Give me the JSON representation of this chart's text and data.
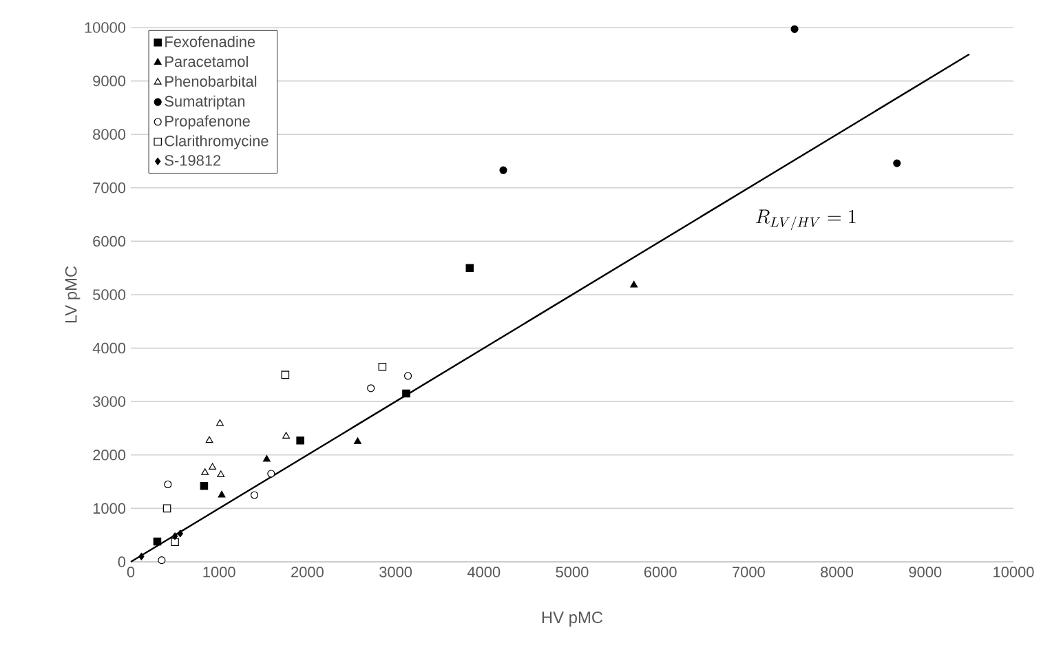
{
  "chart_data": {
    "type": "scatter",
    "xlabel": "HV pMC",
    "ylabel": "LV pMC",
    "xlim": [
      0,
      10000
    ],
    "ylim": [
      0,
      10000
    ],
    "xticks": [
      0,
      1000,
      2000,
      3000,
      4000,
      5000,
      6000,
      7000,
      8000,
      9000,
      10000
    ],
    "yticks": [
      0,
      1000,
      2000,
      3000,
      4000,
      5000,
      6000,
      7000,
      8000,
      9000,
      10000
    ],
    "grid": "y",
    "legend": "top left",
    "series": [
      {
        "name": "Fexofenadine",
        "color": "#000000",
        "marker": "square",
        "x": [
          300,
          830,
          1920,
          3120,
          3840
        ],
        "values": [
          380,
          1420,
          2270,
          3150,
          5500
        ]
      },
      {
        "name": "Paracetamol",
        "color": "#000000",
        "marker": "triangle",
        "x": [
          1030,
          1540,
          2570,
          5700
        ],
        "values": [
          1250,
          1920,
          2250,
          5180
        ]
      },
      {
        "name": "Phenobarbital",
        "color": "#ffffff",
        "marker": "triangle",
        "x": [
          840,
          925,
          1020,
          890,
          1010,
          1760
        ],
        "values": [
          1670,
          1770,
          1630,
          2270,
          2590,
          2350
        ]
      },
      {
        "name": "Sumatriptan",
        "color": "#000000",
        "marker": "circle",
        "x": [
          4220,
          7520,
          8680
        ],
        "values": [
          7330,
          9970,
          7460
        ]
      },
      {
        "name": "Propafenone",
        "color": "#ffffff",
        "marker": "circle",
        "x": [
          350,
          420,
          1400,
          1590,
          2720,
          3140
        ],
        "values": [
          30,
          1450,
          1250,
          1650,
          3250,
          3480
        ]
      },
      {
        "name": "Clarithromycine",
        "color": "#ffffff",
        "marker": "square",
        "x": [
          410,
          500,
          1750,
          2850
        ],
        "values": [
          1000,
          370,
          3500,
          3650
        ]
      },
      {
        "name": "S-19812",
        "color": "#000000",
        "marker": "diamond",
        "x": [
          120,
          500,
          560
        ],
        "values": [
          100,
          480,
          530
        ]
      },
      {
        "type": "line",
        "color": "#000000",
        "marker": "none",
        "x": [
          0,
          9500
        ],
        "values": [
          0,
          9500
        ]
      }
    ],
    "annotations": [
      "R_{LV/HV} = 1"
    ]
  }
}
